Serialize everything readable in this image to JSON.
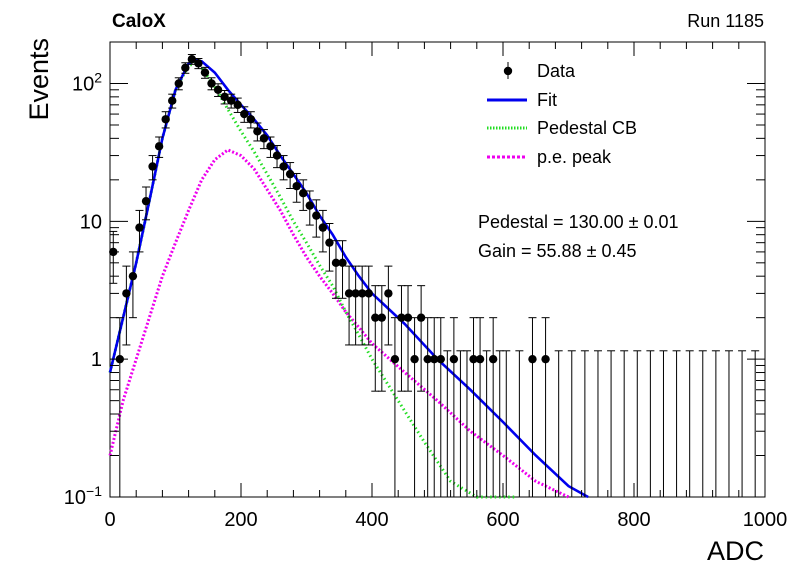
{
  "header": {
    "left_label": "CaloX",
    "right_label": "Run 1185"
  },
  "chart_data": {
    "type": "scatter",
    "xlabel": "ADC",
    "ylabel": "Events",
    "xlim": [
      0,
      1000
    ],
    "ylim": [
      0.1,
      200
    ],
    "yscale": "log",
    "x_ticks": [
      "0",
      "200",
      "400",
      "600",
      "800",
      "1000"
    ],
    "y_ticks": [
      {
        "value": 100,
        "base": "10",
        "exp": "2"
      },
      {
        "value": 10,
        "base": "10",
        "exp": ""
      },
      {
        "value": 1,
        "base": "1",
        "exp": ""
      },
      {
        "value": 0.1,
        "base": "10",
        "exp": "−1"
      }
    ],
    "grid": false,
    "legend_position": "top-right",
    "legend": [
      {
        "label": "Data",
        "style": "marker",
        "color": "#000000"
      },
      {
        "label": "Fit",
        "style": "solid",
        "color": "#0000ee"
      },
      {
        "label": "Pedestal CB",
        "style": "dotted",
        "color": "#22dd22"
      },
      {
        "label": "p.e. peak",
        "style": "dotted",
        "color": "#ee00ee"
      }
    ],
    "annotations": [
      {
        "text": "Pedestal = 130.00 ± 0.01"
      },
      {
        "text": "Gain = 55.88 ± 0.45"
      }
    ],
    "series": [
      {
        "name": "Data",
        "x": [
          5,
          15,
          25,
          35,
          45,
          55,
          65,
          75,
          85,
          95,
          105,
          115,
          125,
          135,
          145,
          155,
          165,
          175,
          185,
          195,
          205,
          215,
          225,
          235,
          245,
          255,
          265,
          275,
          285,
          295,
          305,
          315,
          325,
          335,
          345,
          355,
          365,
          375,
          385,
          395,
          405,
          415,
          425,
          435,
          445,
          455,
          465,
          475,
          485,
          495,
          505,
          515,
          525,
          535,
          545,
          555,
          565,
          575,
          585,
          595,
          605,
          625,
          645,
          665,
          685,
          705,
          725,
          745,
          765,
          785,
          805,
          825,
          845,
          865,
          885,
          905,
          925,
          945,
          965,
          985
        ],
        "y": [
          6,
          1,
          3,
          4,
          9,
          14,
          25,
          35,
          55,
          75,
          100,
          130,
          150,
          140,
          120,
          100,
          90,
          80,
          75,
          70,
          60,
          55,
          45,
          40,
          35,
          30,
          25,
          22,
          18,
          16,
          13,
          11,
          9,
          7,
          5,
          5,
          3,
          3,
          3,
          3,
          2,
          2,
          3,
          1,
          2,
          2,
          1,
          2,
          1,
          1,
          1,
          0,
          1,
          0,
          0,
          1,
          1,
          0,
          1,
          0,
          0,
          0,
          1,
          1,
          0,
          0,
          0,
          0,
          0,
          0,
          0,
          0,
          0,
          0,
          0,
          0,
          0,
          0,
          0,
          0
        ]
      },
      {
        "name": "Fit",
        "x": [
          0,
          20,
          40,
          60,
          80,
          100,
          120,
          130,
          140,
          160,
          180,
          200,
          220,
          240,
          260,
          280,
          300,
          320,
          340,
          360,
          380,
          400,
          450,
          500,
          550,
          600,
          650,
          700,
          730
        ],
        "y": [
          0.8,
          2,
          5,
          14,
          40,
          90,
          140,
          148,
          145,
          120,
          90,
          70,
          55,
          42,
          30,
          22,
          16,
          11,
          8,
          5.5,
          4,
          3,
          1.8,
          1,
          0.6,
          0.35,
          0.2,
          0.12,
          0.1
        ]
      },
      {
        "name": "Pedestal CB",
        "x": [
          0,
          20,
          40,
          60,
          80,
          100,
          120,
          130,
          140,
          160,
          180,
          200,
          220,
          240,
          260,
          280,
          300,
          320,
          340,
          360,
          380,
          400,
          440,
          480,
          520,
          560,
          600,
          620
        ],
        "y": [
          0.8,
          2,
          5,
          14,
          40,
          90,
          135,
          140,
          130,
          95,
          65,
          45,
          32,
          22,
          15,
          10,
          7,
          4.8,
          3.4,
          2.2,
          1.5,
          1,
          0.5,
          0.25,
          0.13,
          0.1,
          0.1,
          0.1
        ]
      },
      {
        "name": "p.e. peak",
        "x": [
          0,
          20,
          40,
          60,
          80,
          100,
          120,
          140,
          160,
          180,
          200,
          220,
          240,
          260,
          280,
          300,
          320,
          340,
          360,
          380,
          400,
          450,
          500,
          550,
          600,
          650,
          700
        ],
        "y": [
          0.2,
          0.5,
          1,
          2,
          4,
          7,
          12,
          20,
          28,
          33,
          30,
          24,
          17,
          12,
          8,
          5.5,
          4,
          3,
          2.2,
          1.7,
          1.3,
          0.8,
          0.5,
          0.3,
          0.2,
          0.13,
          0.1
        ]
      }
    ]
  }
}
